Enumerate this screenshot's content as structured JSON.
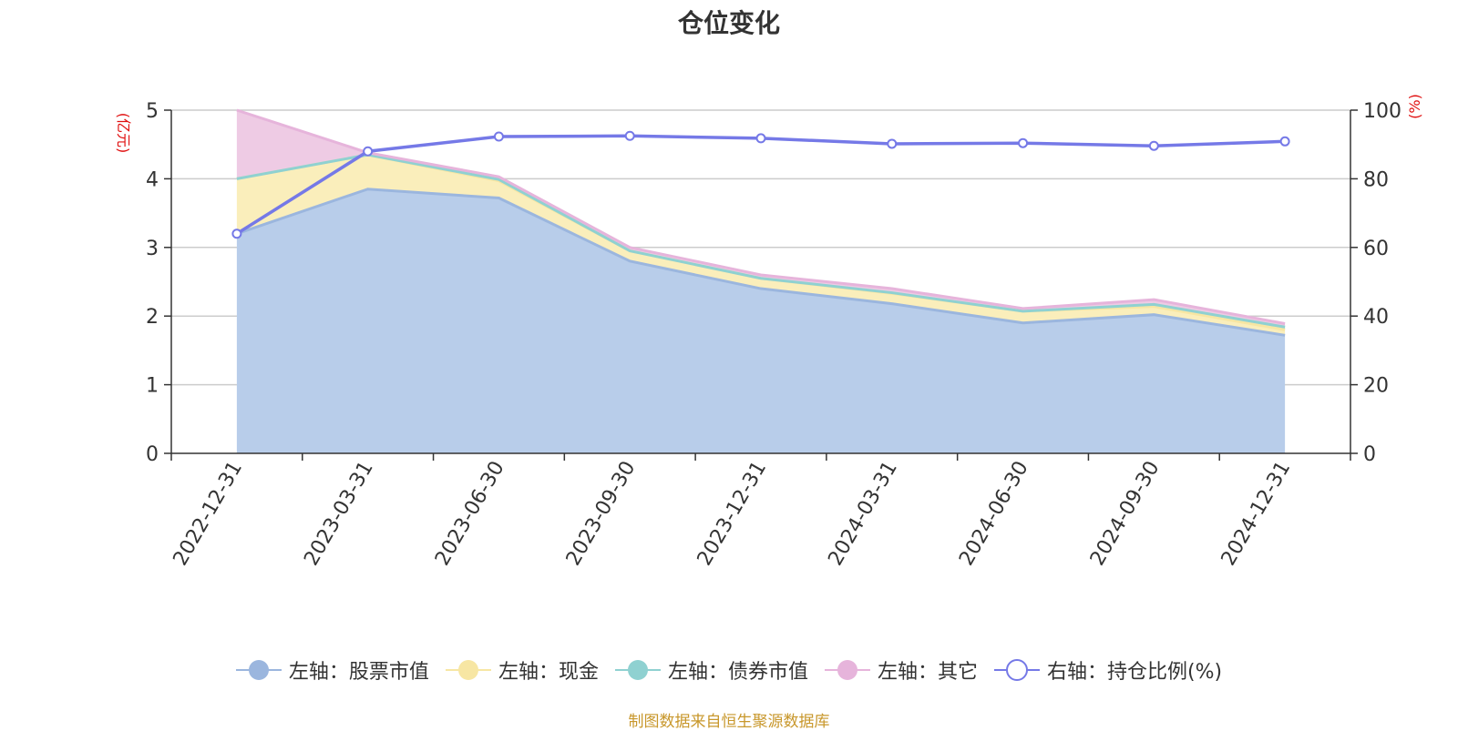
{
  "chart_data": {
    "type": "area",
    "title": "仓位变化",
    "categories": [
      "2022-12-31",
      "2023-03-31",
      "2023-06-30",
      "2023-09-30",
      "2023-12-31",
      "2024-03-31",
      "2024-06-30",
      "2024-09-30",
      "2024-12-31"
    ],
    "left_axis": {
      "unit": "(亿元)",
      "range": [
        0,
        5
      ],
      "ticks": [
        "0",
        "1",
        "2",
        "3",
        "4",
        "5"
      ]
    },
    "right_axis": {
      "unit": "(%)",
      "range": [
        0,
        100
      ],
      "ticks": [
        "0",
        "20",
        "40",
        "60",
        "80",
        "100"
      ]
    },
    "series": [
      {
        "name": "左轴：股票市值",
        "axis": "left",
        "color": "#9bb6de",
        "fill": "#b8cdea",
        "values": [
          3.2,
          3.85,
          3.72,
          2.8,
          2.4,
          2.18,
          1.9,
          2.02,
          1.72
        ]
      },
      {
        "name": "左轴：现金",
        "axis": "left",
        "color": "#f7e6a3",
        "fill": "#faeebb",
        "values": [
          0.8,
          0.5,
          0.25,
          0.15,
          0.15,
          0.15,
          0.17,
          0.12,
          0.08
        ]
      },
      {
        "name": "左轴：债券市值",
        "axis": "left",
        "color": "#8fd1d1",
        "fill": "#a9dede",
        "values": [
          0,
          0,
          0.02,
          0,
          0,
          0.01,
          0,
          0.03,
          0.04
        ]
      },
      {
        "name": "左轴：其它",
        "axis": "left",
        "color": "#e6b4db",
        "fill": "#eecbe4",
        "values": [
          1.0,
          0.03,
          0.04,
          0.05,
          0.05,
          0.06,
          0.04,
          0.07,
          0.05
        ]
      },
      {
        "name": "右轴：持仓比例(%)",
        "axis": "right",
        "color": "#7579e7",
        "values": [
          64,
          88,
          92.3,
          92.5,
          91.8,
          90.2,
          90.4,
          89.6,
          90.9
        ]
      }
    ]
  },
  "source": "制图数据来自恒生聚源数据库"
}
